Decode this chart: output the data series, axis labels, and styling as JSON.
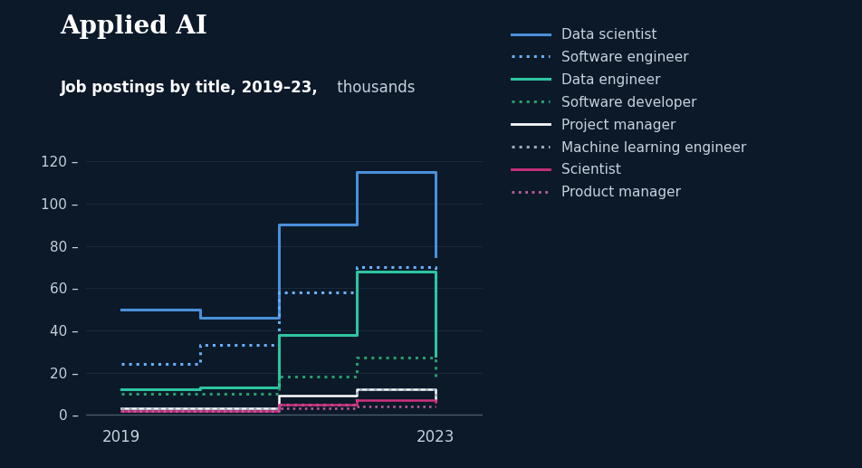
{
  "title": "Applied AI",
  "subtitle_bold": "Job postings by title, 2019–23,",
  "subtitle_light": " thousands",
  "bg_color": "#0b1929",
  "text_color": "#c8d0dc",
  "title_color": "#ffffff",
  "subtitle_bold_color": "#ffffff",
  "grid_color": "#1a2a3a",
  "axis_color": "#3a4a5a",
  "series": [
    {
      "label": "Data scientist",
      "color": "#4a90d9",
      "linestyle": "solid",
      "linewidth": 2.2,
      "values": [
        50,
        46,
        90,
        115,
        75
      ]
    },
    {
      "label": "Software engineer",
      "color": "#6ab0f5",
      "linestyle": "dotted",
      "linewidth": 2.2,
      "values": [
        24,
        33,
        58,
        70,
        40
      ]
    },
    {
      "label": "Data engineer",
      "color": "#2ec4a0",
      "linestyle": "solid",
      "linewidth": 2.2,
      "values": [
        12,
        13,
        38,
        68,
        28
      ]
    },
    {
      "label": "Software developer",
      "color": "#2a9d6a",
      "linestyle": "dotted",
      "linewidth": 2.2,
      "values": [
        10,
        10,
        18,
        27,
        18
      ]
    },
    {
      "label": "Project manager",
      "color": "#ffffff",
      "linestyle": "solid",
      "linewidth": 1.8,
      "values": [
        3,
        3,
        9,
        12,
        7
      ]
    },
    {
      "label": "Machine learning engineer",
      "color": "#a0aabb",
      "linestyle": "dotted",
      "linewidth": 2.2,
      "values": [
        3,
        3,
        5,
        12,
        7
      ]
    },
    {
      "label": "Scientist",
      "color": "#d03080",
      "linestyle": "solid",
      "linewidth": 1.8,
      "values": [
        2,
        2,
        5,
        7,
        6
      ]
    },
    {
      "label": "Product manager",
      "color": "#c060a0",
      "linestyle": "dotted",
      "linewidth": 1.8,
      "values": [
        2,
        2,
        3,
        4,
        4
      ]
    }
  ],
  "x_values": [
    2019,
    2020,
    2021,
    2022,
    2023
  ],
  "xlim": [
    2018.55,
    2023.6
  ],
  "ylim": [
    -3,
    130
  ],
  "yticks": [
    0,
    20,
    40,
    60,
    80,
    100,
    120
  ],
  "xticks": [
    2019,
    2023
  ]
}
